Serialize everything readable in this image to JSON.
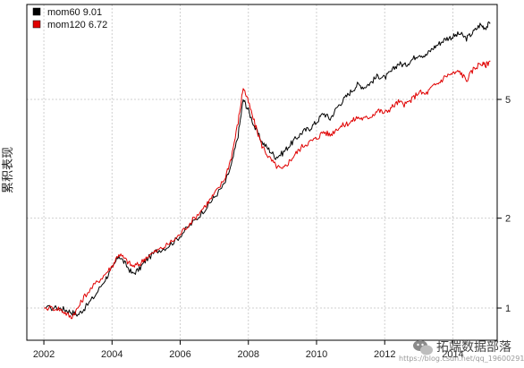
{
  "chart_data": {
    "type": "line",
    "title": "",
    "xlabel": "",
    "ylabel": "累积表现",
    "xlim": [
      2001.5,
      2015.3
    ],
    "ylim": [
      0.78,
      10.4
    ],
    "y_scale": "log",
    "grid": true,
    "legend_position": "top-left",
    "x_ticks": [
      2002,
      2004,
      2006,
      2008,
      2010,
      2012,
      2014
    ],
    "x_tick_labels": [
      "2002",
      "2004",
      "2006",
      "2008",
      "2010",
      "2012",
      "2014"
    ],
    "y_ticks": [
      1,
      2,
      5
    ],
    "y_tick_labels": [
      "1",
      "2",
      "5"
    ],
    "series": [
      {
        "name": "mom60 9.01",
        "color": "#000000",
        "x": [
          2002.0,
          2002.4,
          2002.6,
          2002.8,
          2003.0,
          2003.2,
          2003.5,
          2003.8,
          2004.0,
          2004.2,
          2004.4,
          2004.6,
          2004.8,
          2005.0,
          2005.3,
          2005.6,
          2005.9,
          2006.2,
          2006.5,
          2006.8,
          2007.0,
          2007.3,
          2007.5,
          2007.7,
          2007.85,
          2008.0,
          2008.2,
          2008.4,
          2008.6,
          2008.8,
          2009.0,
          2009.2,
          2009.4,
          2009.6,
          2009.8,
          2010.0,
          2010.2,
          2010.4,
          2010.6,
          2010.8,
          2011.0,
          2011.2,
          2011.4,
          2011.6,
          2011.8,
          2012.0,
          2012.2,
          2012.4,
          2012.6,
          2012.8,
          2013.0,
          2013.2,
          2013.4,
          2013.6,
          2013.8,
          2014.0,
          2014.2,
          2014.4,
          2014.6,
          2014.8,
          2014.95,
          2015.1
        ],
        "y": [
          1.0,
          1.0,
          0.99,
          0.97,
          0.95,
          1.0,
          1.1,
          1.25,
          1.35,
          1.5,
          1.4,
          1.3,
          1.35,
          1.45,
          1.55,
          1.6,
          1.7,
          1.85,
          2.0,
          2.2,
          2.35,
          2.6,
          3.0,
          3.8,
          5.0,
          4.6,
          4.0,
          3.6,
          3.4,
          3.2,
          3.3,
          3.5,
          3.7,
          3.9,
          4.0,
          4.2,
          4.5,
          4.3,
          4.7,
          5.0,
          5.3,
          5.6,
          5.5,
          5.7,
          6.0,
          5.9,
          6.2,
          6.6,
          6.5,
          6.8,
          7.1,
          7.0,
          7.4,
          7.7,
          8.0,
          8.1,
          8.3,
          8.0,
          8.4,
          8.9,
          8.7,
          9.01
        ]
      },
      {
        "name": "mom120 6.72",
        "color": "#e00000",
        "x": [
          2002.0,
          2002.4,
          2002.6,
          2002.8,
          2003.0,
          2003.2,
          2003.5,
          2003.8,
          2004.0,
          2004.2,
          2004.4,
          2004.6,
          2004.8,
          2005.0,
          2005.3,
          2005.6,
          2005.9,
          2006.2,
          2006.5,
          2006.8,
          2007.0,
          2007.3,
          2007.5,
          2007.7,
          2007.85,
          2008.0,
          2008.2,
          2008.4,
          2008.6,
          2008.8,
          2009.0,
          2009.2,
          2009.4,
          2009.6,
          2009.8,
          2010.0,
          2010.2,
          2010.4,
          2010.6,
          2010.8,
          2011.0,
          2011.2,
          2011.4,
          2011.6,
          2011.8,
          2012.0,
          2012.2,
          2012.4,
          2012.6,
          2012.8,
          2013.0,
          2013.2,
          2013.4,
          2013.6,
          2013.8,
          2014.0,
          2014.2,
          2014.4,
          2014.6,
          2014.8,
          2014.95,
          2015.1
        ],
        "y": [
          1.0,
          1.0,
          0.97,
          0.93,
          1.0,
          1.1,
          1.2,
          1.3,
          1.38,
          1.52,
          1.45,
          1.38,
          1.4,
          1.48,
          1.55,
          1.62,
          1.72,
          1.88,
          2.05,
          2.25,
          2.4,
          2.7,
          3.2,
          4.2,
          5.5,
          4.9,
          4.1,
          3.5,
          3.2,
          3.0,
          2.9,
          3.1,
          3.3,
          3.5,
          3.6,
          3.7,
          3.9,
          3.8,
          4.0,
          4.1,
          4.2,
          4.35,
          4.3,
          4.4,
          4.6,
          4.5,
          4.7,
          4.9,
          4.8,
          5.0,
          5.3,
          5.2,
          5.5,
          5.7,
          6.0,
          6.1,
          6.2,
          5.8,
          6.3,
          6.6,
          6.5,
          6.72
        ]
      }
    ]
  },
  "watermark": {
    "brand": "拓端数据部落",
    "url": "https://blog.csdn.net/qq_19600291"
  }
}
